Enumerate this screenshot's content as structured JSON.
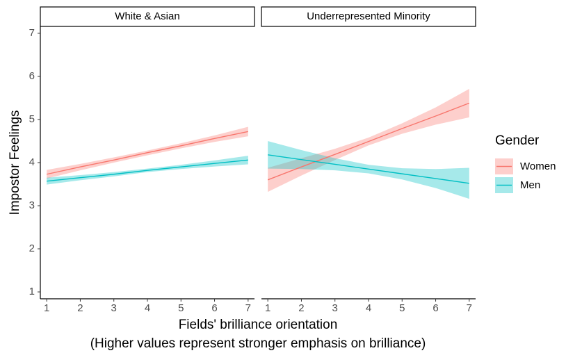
{
  "y_label": "Impostor Feelings",
  "x_label": [
    "Fields' brilliance orientation",
    "(Higher values represent stronger emphasis on brilliance)"
  ],
  "legend_title": "Gender",
  "chart_data": [
    {
      "type": "line",
      "title": "White & Asian",
      "x": [
        1,
        2,
        3,
        4,
        5,
        6,
        7
      ],
      "xlim": [
        0.81,
        7.19
      ],
      "xticks": [
        1,
        2,
        3,
        4,
        5,
        6,
        7
      ],
      "ylim": [
        0.84,
        7.16
      ],
      "yticks": [
        1,
        2,
        3,
        4,
        5,
        6,
        7
      ],
      "series": [
        {
          "name": "Women",
          "color": "#F8766D",
          "values": [
            3.73,
            3.9,
            4.06,
            4.23,
            4.39,
            4.56,
            4.72
          ],
          "lower": [
            3.63,
            3.82,
            4.0,
            4.17,
            4.33,
            4.48,
            4.61
          ],
          "upper": [
            3.83,
            3.97,
            4.12,
            4.28,
            4.45,
            4.63,
            4.83
          ]
        },
        {
          "name": "Men",
          "color": "#00BFC4",
          "values": [
            3.57,
            3.65,
            3.73,
            3.82,
            3.9,
            3.98,
            4.06
          ],
          "lower": [
            3.49,
            3.59,
            3.68,
            3.78,
            3.85,
            3.91,
            3.96
          ],
          "upper": [
            3.65,
            3.71,
            3.78,
            3.86,
            3.95,
            4.05,
            4.16
          ]
        }
      ]
    },
    {
      "type": "line",
      "title": "Underrepresented Minority",
      "x": [
        1,
        2,
        3,
        4,
        5,
        6,
        7
      ],
      "xlim": [
        0.81,
        7.19
      ],
      "xticks": [
        1,
        2,
        3,
        4,
        5,
        6,
        7
      ],
      "ylim": [
        0.84,
        7.16
      ],
      "yticks": [
        1,
        2,
        3,
        4,
        5,
        6,
        7
      ],
      "series": [
        {
          "name": "Women",
          "color": "#F8766D",
          "values": [
            3.6,
            3.9,
            4.19,
            4.49,
            4.79,
            5.08,
            5.38
          ],
          "lower": [
            3.32,
            3.7,
            4.06,
            4.4,
            4.67,
            4.88,
            5.05
          ],
          "upper": [
            3.88,
            4.1,
            4.32,
            4.58,
            4.91,
            5.28,
            5.71
          ]
        },
        {
          "name": "Men",
          "color": "#00BFC4",
          "values": [
            4.18,
            4.07,
            3.96,
            3.85,
            3.74,
            3.63,
            3.52
          ],
          "lower": [
            3.86,
            3.85,
            3.82,
            3.75,
            3.61,
            3.41,
            3.16
          ],
          "upper": [
            4.5,
            4.29,
            4.1,
            3.95,
            3.87,
            3.85,
            3.88
          ]
        }
      ]
    }
  ]
}
